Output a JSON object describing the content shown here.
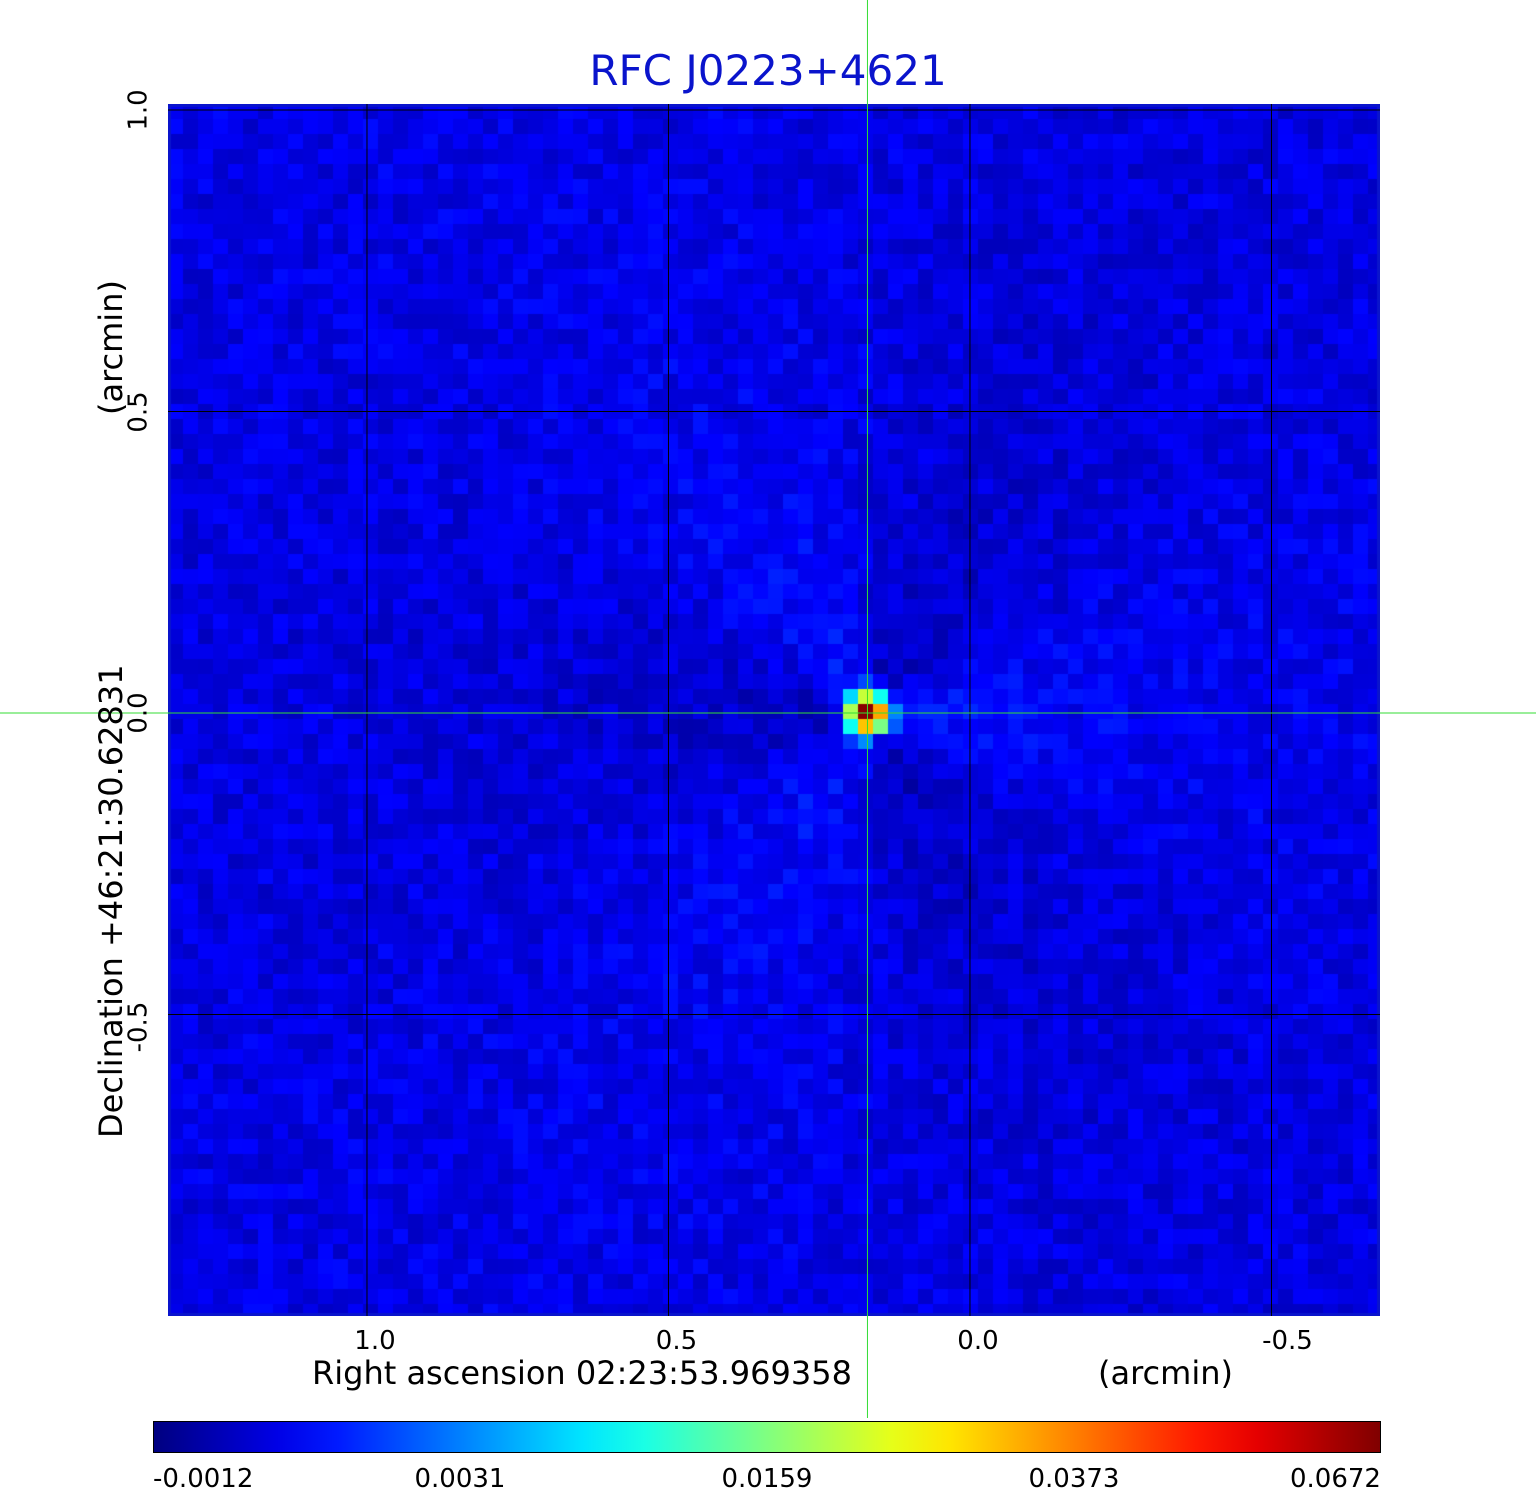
{
  "chart_data": {
    "type": "heatmap",
    "title": "RFC J0223+4621",
    "xlabel": "Right ascension  02:23:53.969358",
    "xunit": "(arcmin)",
    "ylabel": "Declination  +46:21:30.62831",
    "yunit": "(arcmin)",
    "xlim": [
      1.33,
      -0.68
    ],
    "ylim": [
      -1.0,
      1.01
    ],
    "x_ticks": [
      "1.0",
      "0.5",
      "0.0",
      "-0.5"
    ],
    "x_tick_values": [
      1.0,
      0.5,
      0.0,
      -0.5
    ],
    "y_ticks": [
      "1.0",
      "0.5",
      "0.0",
      "-0.5"
    ],
    "y_tick_values": [
      1.0,
      0.5,
      0.0,
      -0.5
    ],
    "grid": true,
    "colormap": "jet",
    "colorbar_ticks": [
      "-0.0012",
      "0.0031",
      "0.0159",
      "0.0373",
      "0.0672"
    ],
    "colorbar_range": [
      -0.0012,
      0.0672
    ],
    "background_level": 0.0005,
    "source": {
      "x": 0.17,
      "y": 0.0,
      "peak": 0.0672
    },
    "crosshair": {
      "x": 0.17,
      "y": 0.0,
      "color": "#33dd33"
    },
    "grid_color": "#000000",
    "frame_color": "#0a14cc"
  }
}
